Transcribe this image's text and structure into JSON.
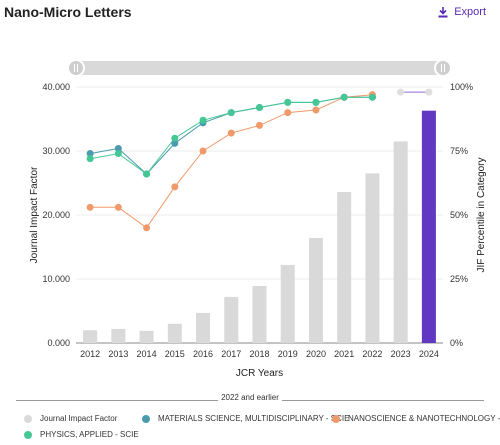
{
  "header": {
    "title": "Nano-Micro Letters",
    "export_label": "Export"
  },
  "colors": {
    "jif_bar": "#d9d9d9",
    "jif_bar_highlight": "#6038c1",
    "materials": "#4a9bad",
    "nano": "#f0996a",
    "physics": "#45c695",
    "slider": "#d9d9d9"
  },
  "legend": {
    "group_label": "2022 and earlier",
    "items": [
      {
        "label": "Journal Impact Factor",
        "icon": "dot-gray"
      },
      {
        "label": "MATERIALS SCIENCE, MULTIDISCIPLINARY - SCIE",
        "icon": "dot-teal"
      },
      {
        "label": "NANOSCIENCE & NANOTECHNOLOGY - SCIE",
        "icon": "dot-orange"
      },
      {
        "label": "PHYSICS, APPLIED - SCIE",
        "icon": "dot-green"
      }
    ]
  },
  "chart_data": {
    "type": "bar",
    "xlabel": "JCR Years",
    "ylabel": "Journal Impact Factor",
    "y2label": "JIF Percentile in Category",
    "categories": [
      "2012",
      "2013",
      "2014",
      "2015",
      "2016",
      "2017",
      "2018",
      "2019",
      "2020",
      "2021",
      "2022",
      "2023",
      "2024"
    ],
    "ylim": [
      0,
      40
    ],
    "y_ticks": [
      "0.000",
      "10.000",
      "20.000",
      "30.000",
      "40.000"
    ],
    "y2lim": [
      0,
      100
    ],
    "y2_ticks": [
      "0%",
      "25%",
      "50%",
      "75%",
      "100%"
    ],
    "highlight_category": "2024",
    "jif_values": [
      2.0,
      2.2,
      1.9,
      3.0,
      4.7,
      7.2,
      8.9,
      12.2,
      16.4,
      23.6,
      26.5,
      31.5,
      36.3
    ],
    "series": [
      {
        "name": "MATERIALS SCIENCE, MULTIDISCIPLINARY - SCIE",
        "color_key": "materials",
        "values": [
          74,
          76,
          66,
          78,
          86,
          90,
          92,
          94,
          94,
          96,
          96,
          null,
          null
        ]
      },
      {
        "name": "NANOSCIENCE & NANOTECHNOLOGY - SCIE",
        "color_key": "nano",
        "values": [
          53,
          53,
          45,
          61,
          75,
          82,
          85,
          90,
          91,
          96,
          97,
          null,
          null
        ]
      },
      {
        "name": "PHYSICS, APPLIED - SCIE",
        "color_key": "physics",
        "values": [
          72,
          74,
          66,
          80,
          87,
          90,
          92,
          94,
          94,
          96,
          96,
          null,
          null
        ]
      }
    ],
    "recent_percentile": {
      "x": [
        "2023",
        "2024"
      ],
      "values": [
        98,
        98
      ]
    }
  }
}
